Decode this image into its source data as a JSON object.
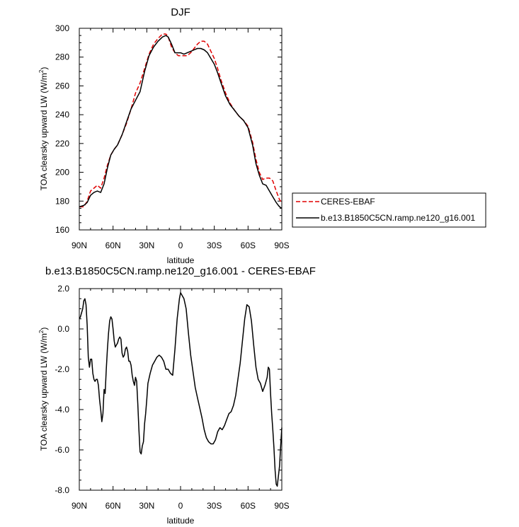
{
  "chart_data": [
    {
      "type": "line",
      "title": "DJF",
      "xlabel": "latitude",
      "ylabel_main": "TOA clearsky upward LW (W/m",
      "ylabel_sup": "2",
      "ylabel_tail": ")",
      "xlim": [
        90,
        -90
      ],
      "ylim": [
        160,
        300
      ],
      "x_ticks": [
        90,
        60,
        30,
        0,
        -30,
        -60,
        -90
      ],
      "x_tick_labels": [
        "90N",
        "60N",
        "30N",
        "0",
        "30S",
        "60S",
        "90S"
      ],
      "y_ticks": [
        160,
        180,
        200,
        220,
        240,
        260,
        280,
        300
      ],
      "y_tick_labels": [
        "160",
        "180",
        "200",
        "220",
        "240",
        "260",
        "280",
        "300"
      ],
      "legend": "right",
      "series": [
        {
          "name": "CERES-EBAF",
          "color": "#e00000",
          "dash": true,
          "x": [
            90,
            86,
            83,
            80,
            77,
            74,
            71,
            68,
            65,
            62,
            59,
            56,
            52,
            48,
            44,
            40,
            36,
            32,
            28,
            24,
            20,
            16,
            13,
            11,
            8,
            5,
            2,
            0,
            -3,
            -6,
            -9,
            -12,
            -15,
            -18,
            -21,
            -24,
            -27,
            -30,
            -33,
            -36,
            -40,
            -44,
            -48,
            -52,
            -56,
            -60,
            -64,
            -67,
            -70,
            -73,
            -76,
            -79,
            -82,
            -85,
            -87,
            -88,
            -90
          ],
          "y": [
            176,
            176,
            180,
            187,
            189,
            191,
            189,
            196,
            205,
            212,
            216,
            219,
            226,
            234,
            244,
            255,
            262,
            272,
            282,
            289,
            293,
            296,
            296,
            294,
            287,
            283,
            281,
            281,
            281,
            281,
            283,
            286,
            289,
            291,
            291,
            289,
            284,
            279,
            272,
            264,
            255,
            248,
            243,
            239,
            236,
            232,
            221,
            209,
            200,
            195,
            196,
            196,
            194,
            187,
            183,
            181,
            179
          ]
        },
        {
          "name": "b.e13.B1850C5CN.ramp.ne120_g16.001",
          "color": "#000000",
          "dash": false,
          "x": [
            90,
            86,
            83,
            80,
            77,
            74,
            71,
            68,
            65,
            62,
            59,
            56,
            52,
            48,
            44,
            40,
            36,
            32,
            28,
            24,
            20,
            16,
            13,
            11,
            8,
            5,
            2,
            0,
            -3,
            -6,
            -9,
            -12,
            -15,
            -18,
            -21,
            -24,
            -27,
            -30,
            -33,
            -36,
            -40,
            -44,
            -48,
            -52,
            -56,
            -60,
            -64,
            -67,
            -70,
            -73,
            -76,
            -79,
            -82,
            -85,
            -87,
            -88,
            -90
          ],
          "y": [
            176,
            177,
            179,
            184,
            186,
            187,
            186,
            192,
            203,
            212,
            216,
            219,
            226,
            235,
            244,
            250,
            256,
            270,
            281,
            287,
            291,
            294,
            295,
            294,
            289,
            283,
            283,
            283,
            282,
            283,
            284,
            285,
            286,
            286,
            285,
            283,
            279,
            275,
            269,
            262,
            253,
            247,
            243,
            239,
            236,
            231,
            219,
            206,
            198,
            192,
            191,
            187,
            183,
            179,
            177,
            176,
            175
          ]
        }
      ]
    },
    {
      "type": "line",
      "title": "b.e13.B1850C5CN.ramp.ne120_g16.001 - CERES-EBAF",
      "xlabel": "latitude",
      "ylabel_main": "TOA clearsky upward LW (W/m",
      "ylabel_sup": "2",
      "ylabel_tail": ")",
      "xlim": [
        90,
        -90
      ],
      "ylim": [
        -8,
        2
      ],
      "x_ticks": [
        90,
        60,
        30,
        0,
        -30,
        -60,
        -90
      ],
      "x_tick_labels": [
        "90N",
        "60N",
        "30N",
        "0",
        "30S",
        "60S",
        "90S"
      ],
      "y_ticks": [
        -8,
        -6,
        -4,
        -2,
        0,
        2
      ],
      "y_tick_labels": [
        "-8.0",
        "-6.0",
        "-4.0",
        "-2.0",
        "0.0",
        "2.0"
      ],
      "series": [
        {
          "color": "#000000",
          "dash": false,
          "x": [
            90,
            89,
            87,
            86,
            85,
            84,
            83,
            82,
            81,
            80,
            79,
            78,
            77,
            76,
            75,
            74,
            73,
            72,
            71,
            70,
            69,
            68,
            67,
            66,
            65,
            64,
            63,
            62,
            61,
            60,
            59,
            58,
            57,
            56,
            55,
            54,
            53,
            52,
            51,
            50,
            49,
            48,
            47,
            46,
            45,
            44,
            43,
            42,
            41,
            40,
            39,
            38,
            37,
            36,
            35,
            34,
            33,
            32,
            31,
            30,
            29,
            27,
            25,
            23,
            21,
            19,
            17,
            15,
            13,
            11,
            9,
            7,
            5,
            3,
            1,
            0,
            -1,
            -3,
            -5,
            -7,
            -9,
            -11,
            -13,
            -15,
            -17,
            -19,
            -21,
            -23,
            -25,
            -27,
            -29,
            -31,
            -33,
            -35,
            -37,
            -39,
            -41,
            -43,
            -45,
            -47,
            -49,
            -51,
            -53,
            -55,
            -57,
            -59,
            -61,
            -63,
            -65,
            -67,
            -69,
            -71,
            -73,
            -75,
            -77,
            -78,
            -79,
            -80,
            -81,
            -82,
            -83,
            -84,
            -85,
            -86,
            -87,
            -88,
            -89,
            -90
          ],
          "y": [
            0.5,
            0.6,
            1.0,
            1.4,
            1.5,
            1.2,
            0.2,
            -1.4,
            -1.9,
            -1.5,
            -1.5,
            -2.2,
            -2.5,
            -2.6,
            -2.5,
            -2.5,
            -2.8,
            -3.5,
            -4.0,
            -4.6,
            -4.2,
            -3.0,
            -3.2,
            -2.0,
            -1.0,
            -0.2,
            0.4,
            0.6,
            0.5,
            0.0,
            -0.6,
            -0.9,
            -0.8,
            -0.7,
            -0.5,
            -0.4,
            -0.5,
            -1.2,
            -1.4,
            -1.3,
            -1.0,
            -0.9,
            -1.1,
            -1.6,
            -1.6,
            -1.8,
            -2.3,
            -2.6,
            -2.8,
            -2.4,
            -2.6,
            -3.7,
            -5.0,
            -6.1,
            -6.2,
            -5.8,
            -5.6,
            -4.7,
            -4.2,
            -3.5,
            -2.7,
            -2.2,
            -1.8,
            -1.6,
            -1.4,
            -1.3,
            -1.4,
            -1.6,
            -2.0,
            -2.0,
            -2.2,
            -2.3,
            -1.0,
            0.5,
            1.5,
            1.8,
            1.7,
            1.5,
            1.0,
            -0.2,
            -1.3,
            -2.1,
            -2.9,
            -3.4,
            -3.9,
            -4.4,
            -5.0,
            -5.4,
            -5.6,
            -5.7,
            -5.7,
            -5.5,
            -5.1,
            -4.9,
            -5.0,
            -4.8,
            -4.5,
            -4.2,
            -4.1,
            -3.8,
            -3.3,
            -2.5,
            -1.7,
            -0.6,
            0.5,
            1.2,
            1.1,
            0.4,
            -0.8,
            -1.9,
            -2.5,
            -2.7,
            -3.1,
            -2.8,
            -2.4,
            -1.9,
            -2.0,
            -3.2,
            -4.2,
            -5.0,
            -5.9,
            -7.0,
            -7.7,
            -7.8,
            -7.3,
            -6.8,
            -5.8,
            -4.9
          ]
        }
      ]
    }
  ]
}
